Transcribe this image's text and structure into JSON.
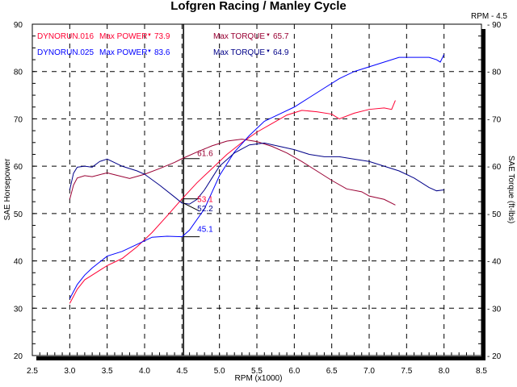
{
  "chart_data": {
    "type": "line",
    "title": "Lofgren Racing / Manley Cycle",
    "xlabel": "RPM (x1000)",
    "ylabel_left": "SAE Horsepower",
    "ylabel_right": "SAE Torque (ft-lbs)",
    "xlim": [
      2.5,
      8.5
    ],
    "ylim": [
      20,
      90
    ],
    "x_ticks": [
      "2.5",
      "3.0",
      "3.5",
      "4.0",
      "4.5",
      "5.0",
      "5.5",
      "6.0",
      "6.5",
      "7.0",
      "7.5",
      "8.0",
      "8.5"
    ],
    "y_ticks": [
      "20",
      "30",
      "40",
      "50",
      "60",
      "70",
      "80",
      "90"
    ],
    "y_ticks_right": [
      "- 20",
      "- 30",
      "- 40",
      "- 50",
      "- 60",
      "- 70",
      "- 80",
      "- 90"
    ],
    "grid": true,
    "cursor": {
      "label": "RPM - 4.5",
      "rpm": 4.52
    },
    "legend": [
      {
        "run": "DYNORUN.016",
        "power_label": "Max POWER",
        "power": "73.9",
        "torque_label": "Max TORQUE",
        "torque": "65.7",
        "power_color": "#ff0033",
        "torque_color": "#990033"
      },
      {
        "run": "DYNORUN.025",
        "power_label": "Max POWER",
        "power": "83.6",
        "torque_label": "Max TORQUE",
        "torque": "64.9",
        "power_color": "#0000ff",
        "torque_color": "#000088"
      }
    ],
    "series": [
      {
        "name": "DYNORUN.016 Power",
        "color": "#ff0033",
        "x": [
          3.0,
          3.1,
          3.2,
          3.3,
          3.5,
          3.7,
          3.9,
          4.1,
          4.3,
          4.5,
          4.7,
          4.9,
          5.1,
          5.3,
          5.5,
          5.7,
          5.9,
          6.1,
          6.3,
          6.5,
          6.6,
          6.8,
          7.0,
          7.2,
          7.3,
          7.35
        ],
        "y": [
          31,
          34,
          36,
          37,
          39,
          40.5,
          43,
          46,
          49.5,
          53.1,
          56.5,
          59.5,
          62.5,
          65,
          67.2,
          69,
          70.8,
          71.8,
          71.5,
          71,
          70,
          71.2,
          72,
          72.3,
          72,
          73.9
        ]
      },
      {
        "name": "DYNORUN.016 Torque",
        "color": "#990033",
        "x": [
          3.0,
          3.05,
          3.1,
          3.2,
          3.3,
          3.5,
          3.6,
          3.8,
          4.0,
          4.2,
          4.4,
          4.5,
          4.7,
          4.9,
          5.1,
          5.3,
          5.5,
          5.7,
          5.9,
          6.1,
          6.3,
          6.5,
          6.7,
          6.9,
          7.0,
          7.2,
          7.35
        ],
        "y": [
          53,
          56,
          57.5,
          58,
          57.8,
          58.6,
          58.2,
          57.4,
          58.3,
          59.5,
          60.8,
          61.6,
          63,
          64.3,
          65.3,
          65.7,
          65.2,
          64.2,
          62.8,
          61,
          59,
          57,
          55.2,
          54.6,
          53.7,
          53,
          51.8
        ]
      },
      {
        "name": "DYNORUN.025 Power",
        "color": "#0000ff",
        "x": [
          3.0,
          3.1,
          3.2,
          3.3,
          3.5,
          3.7,
          3.9,
          4.1,
          4.3,
          4.5,
          4.6,
          4.8,
          4.9,
          5.0,
          5.2,
          5.4,
          5.6,
          5.8,
          6.0,
          6.2,
          6.4,
          6.6,
          6.8,
          7.0,
          7.2,
          7.4,
          7.6,
          7.8,
          7.9,
          7.95,
          8.0
        ],
        "y": [
          32,
          35,
          37,
          38.5,
          41,
          42,
          43.5,
          45,
          45.2,
          45.1,
          46.5,
          51,
          54.5,
          58,
          63,
          66.5,
          69.5,
          71,
          72.5,
          74.5,
          76.5,
          78.5,
          80,
          81,
          82,
          83,
          83,
          83,
          82.5,
          82,
          83.6
        ]
      },
      {
        "name": "DYNORUN.025 Torque",
        "color": "#000088",
        "x": [
          3.0,
          3.05,
          3.1,
          3.2,
          3.3,
          3.4,
          3.5,
          3.7,
          3.9,
          4.0,
          4.2,
          4.4,
          4.5,
          4.6,
          4.7,
          4.8,
          4.9,
          5.0,
          5.2,
          5.4,
          5.6,
          5.8,
          6.0,
          6.2,
          6.4,
          6.6,
          6.8,
          7.0,
          7.2,
          7.4,
          7.6,
          7.8,
          7.9,
          8.0
        ],
        "y": [
          55,
          58.5,
          59.8,
          60,
          59.8,
          61,
          61.5,
          60,
          59,
          58.3,
          56,
          53.5,
          52.2,
          52,
          53,
          55,
          57.5,
          60,
          62.8,
          64.5,
          64.9,
          64.2,
          63.5,
          62.5,
          62,
          62,
          61.5,
          61,
          60,
          59,
          57.5,
          55.5,
          54.8,
          55
        ]
      }
    ],
    "annotations": [
      {
        "text": "61.6",
        "x": 4.52,
        "y": 61.6,
        "color": "#990033"
      },
      {
        "text": "53.1",
        "x": 4.52,
        "y": 53.1,
        "color": "#ff0033"
      },
      {
        "text": "52.2",
        "x": 4.52,
        "y": 52.2,
        "color": "#000088"
      },
      {
        "text": "45.1",
        "x": 4.52,
        "y": 45.1,
        "color": "#0000ff"
      }
    ]
  }
}
